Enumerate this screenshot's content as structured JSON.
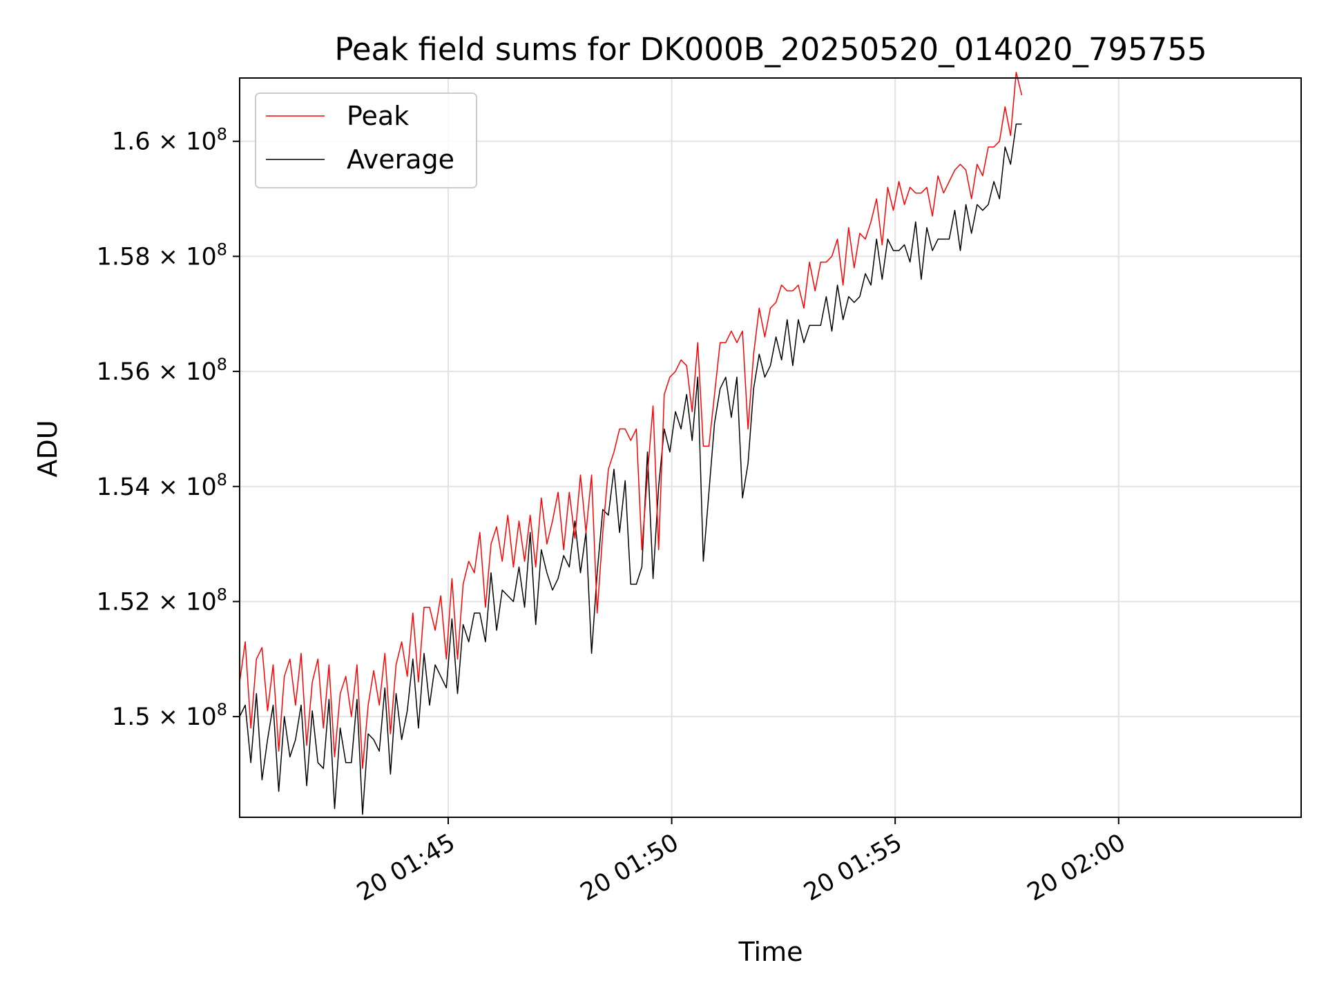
{
  "chart_data": {
    "type": "line",
    "title": "Peak field sums for DK000B_20250520_014020_795755",
    "xlabel": "Time",
    "ylabel": "ADU",
    "x_start": "2025-05-20 01:40:20",
    "x_interval_seconds": 7.5,
    "xlim": [
      "2025-05-20 01:40:20",
      "2025-05-20 02:04:05"
    ],
    "ylim": [
      148250000,
      161100000
    ],
    "grid": true,
    "legend_position": "upper left",
    "x_ticks": [
      {
        "time": "2025-05-20 01:45:00",
        "label": "20 01:45"
      },
      {
        "time": "2025-05-20 01:50:00",
        "label": "20 01:50"
      },
      {
        "time": "2025-05-20 01:55:00",
        "label": "20 01:55"
      },
      {
        "time": "2025-05-20 02:00:00",
        "label": "20 02:00"
      }
    ],
    "y_ticks": [
      {
        "value": 150000000,
        "mantissa": "1.5",
        "exp": "8"
      },
      {
        "value": 152000000,
        "mantissa": "1.52",
        "exp": "8"
      },
      {
        "value": 154000000,
        "mantissa": "1.54",
        "exp": "8"
      },
      {
        "value": 156000000,
        "mantissa": "1.56",
        "exp": "8"
      },
      {
        "value": 158000000,
        "mantissa": "1.58",
        "exp": "8"
      },
      {
        "value": 160000000,
        "mantissa": "1.6",
        "exp": "8"
      }
    ],
    "series": [
      {
        "name": "Peak",
        "color": "#ff0000",
        "values": [
          150600000,
          151300000,
          149800000,
          151000000,
          151200000,
          150100000,
          150900000,
          149400000,
          150700000,
          151000000,
          150200000,
          151100000,
          149500000,
          150600000,
          151000000,
          149800000,
          150900000,
          149300000,
          150400000,
          150700000,
          150000000,
          150900000,
          149100000,
          150200000,
          150800000,
          150200000,
          151100000,
          149700000,
          150900000,
          151300000,
          150700000,
          151800000,
          150600000,
          151900000,
          151900000,
          151500000,
          152100000,
          151000000,
          152400000,
          151000000,
          152300000,
          152700000,
          152500000,
          153200000,
          151900000,
          153000000,
          153300000,
          152700000,
          153500000,
          152600000,
          153400000,
          152700000,
          153500000,
          152600000,
          153800000,
          153000000,
          153400000,
          153900000,
          152900000,
          153900000,
          153100000,
          154200000,
          153200000,
          154200000,
          151800000,
          153200000,
          154300000,
          154600000,
          155000000,
          155000000,
          154800000,
          155000000,
          152900000,
          154200000,
          155400000,
          152900000,
          155600000,
          155900000,
          156000000,
          156200000,
          156100000,
          155300000,
          156500000,
          154700000,
          154700000,
          155600000,
          156500000,
          156500000,
          156700000,
          156500000,
          156700000,
          155000000,
          156300000,
          157100000,
          156600000,
          157100000,
          157200000,
          157500000,
          157400000,
          157400000,
          157500000,
          157100000,
          157900000,
          157400000,
          157900000,
          157900000,
          158000000,
          158300000,
          157500000,
          158500000,
          157800000,
          158400000,
          158300000,
          158600000,
          159000000,
          158200000,
          159200000,
          158800000,
          159300000,
          158900000,
          159200000,
          159100000,
          159100000,
          159200000,
          158700000,
          159400000,
          159100000,
          159300000,
          159500000,
          159600000,
          159500000,
          159000000,
          159600000,
          159400000,
          159900000,
          159900000,
          160000000,
          160600000,
          160100000,
          161200000,
          160800000
        ]
      },
      {
        "name": "Average",
        "color": "#000000",
        "values": [
          150000000,
          150200000,
          149200000,
          150400000,
          148900000,
          149600000,
          150200000,
          148700000,
          150000000,
          149300000,
          149600000,
          150200000,
          148800000,
          150100000,
          149200000,
          149100000,
          150300000,
          148400000,
          149800000,
          149200000,
          149200000,
          150300000,
          148300000,
          149700000,
          149600000,
          149400000,
          150500000,
          149000000,
          150400000,
          149600000,
          150100000,
          151000000,
          149800000,
          151100000,
          150200000,
          150900000,
          150700000,
          150500000,
          151700000,
          150400000,
          151600000,
          151300000,
          151800000,
          151800000,
          151300000,
          152500000,
          151500000,
          152200000,
          152100000,
          152000000,
          152600000,
          151900000,
          153200000,
          151600000,
          152900000,
          152500000,
          152200000,
          152400000,
          152800000,
          152600000,
          153400000,
          152500000,
          153200000,
          151100000,
          152500000,
          153600000,
          153500000,
          154300000,
          153200000,
          154100000,
          152300000,
          152300000,
          152600000,
          154600000,
          152400000,
          154000000,
          155000000,
          154600000,
          155300000,
          155000000,
          155600000,
          154800000,
          155900000,
          152700000,
          153900000,
          155100000,
          155700000,
          155900000,
          155200000,
          155900000,
          153800000,
          154400000,
          155700000,
          156300000,
          155900000,
          156100000,
          156600000,
          156200000,
          156900000,
          156100000,
          156900000,
          156500000,
          156800000,
          156800000,
          156800000,
          157300000,
          156700000,
          157500000,
          156900000,
          157300000,
          157200000,
          157300000,
          157700000,
          157500000,
          158300000,
          157600000,
          158300000,
          158100000,
          158100000,
          158200000,
          157900000,
          158600000,
          157600000,
          158500000,
          158100000,
          158300000,
          158300000,
          158300000,
          158800000,
          158100000,
          158900000,
          158400000,
          158900000,
          158800000,
          158900000,
          159300000,
          159000000,
          159900000,
          159600000,
          160300000,
          160300000
        ]
      }
    ]
  }
}
